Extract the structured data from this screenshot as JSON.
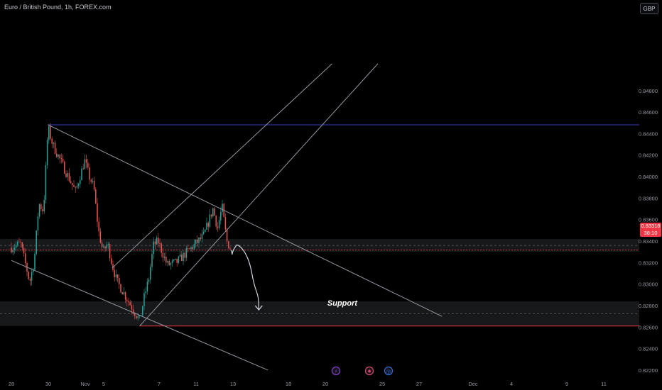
{
  "symbol_title": "Euro / British Pound, 1h, FOREX.com",
  "currency": "GBP",
  "price_tag": {
    "price": "0.83318",
    "countdown": "38:10"
  },
  "annotation": "Support",
  "colors": {
    "background": "#000000",
    "up": "#26a69a",
    "down": "#ef5350",
    "resistance_line": "#2f3fbf",
    "support_line": "#f23645",
    "trendline": "#9598a1",
    "zone": "#2a2b30",
    "price_tag": "#f23645"
  },
  "icons": [
    "lightning-icon",
    "dividend-icon",
    "earnings-icon"
  ],
  "chart_data": {
    "type": "candlestick",
    "title": "Euro / British Pound, 1h, FOREX.com",
    "interval": "1h",
    "x_ticks": [
      "28",
      "30",
      "Nov",
      "5",
      "7",
      "11",
      "13",
      "18",
      "20",
      "25",
      "27",
      "Dec",
      "4",
      "9",
      "11"
    ],
    "y_ticks": [
      "0.84800",
      "0.84600",
      "0.84400",
      "0.84200",
      "0.84000",
      "0.83800",
      "0.83600",
      "0.83400",
      "0.83200",
      "0.83000",
      "0.82800",
      "0.82600",
      "0.82400",
      "0.82200"
    ],
    "ylim": [
      0.8218,
      0.8497
    ],
    "last_price": 0.83318,
    "price_path": [
      {
        "date": "2024-10-28",
        "price": 0.8334
      },
      {
        "date": "2024-10-29",
        "price": 0.8338
      },
      {
        "date": "2024-10-30",
        "price": 0.8302
      },
      {
        "date": "2024-10-30 12:00",
        "price": 0.8322
      },
      {
        "date": "2024-10-31",
        "price": 0.8375
      },
      {
        "date": "2024-10-31 12:00",
        "price": 0.8368
      },
      {
        "date": "2024-11-01",
        "price": 0.8446
      },
      {
        "date": "2024-11-01 12:00",
        "price": 0.843
      },
      {
        "date": "2024-11-04",
        "price": 0.8386
      },
      {
        "date": "2024-11-05",
        "price": 0.8415
      },
      {
        "date": "2024-11-05 12:00",
        "price": 0.84
      },
      {
        "date": "2024-11-06",
        "price": 0.839
      },
      {
        "date": "2024-11-06 12:00",
        "price": 0.835
      },
      {
        "date": "2024-11-07",
        "price": 0.833
      },
      {
        "date": "2024-11-07 12:00",
        "price": 0.8338
      },
      {
        "date": "2024-11-08",
        "price": 0.8318
      },
      {
        "date": "2024-11-08 12:00",
        "price": 0.8303
      },
      {
        "date": "2024-11-11",
        "price": 0.8266
      },
      {
        "date": "2024-11-11 12:00",
        "price": 0.8288
      },
      {
        "date": "2024-11-12",
        "price": 0.8305
      },
      {
        "date": "2024-11-12 12:00",
        "price": 0.8336
      },
      {
        "date": "2024-11-13",
        "price": 0.834
      },
      {
        "date": "2024-11-14",
        "price": 0.8318
      },
      {
        "date": "2024-11-15",
        "price": 0.832
      },
      {
        "date": "2024-11-18",
        "price": 0.8345
      },
      {
        "date": "2024-11-19",
        "price": 0.837
      },
      {
        "date": "2024-11-19 12:00",
        "price": 0.8352
      },
      {
        "date": "2024-11-20",
        "price": 0.8372
      },
      {
        "date": "2024-11-20 12:00",
        "price": 0.834
      },
      {
        "date": "2024-11-21",
        "price": 0.83318
      }
    ],
    "horizontal_levels": [
      {
        "price": 0.84482,
        "style": "resistance"
      },
      {
        "price": 0.8261,
        "style": "support"
      }
    ],
    "zones": [
      {
        "from": 0.833,
        "to": 0.8342
      },
      {
        "from": 0.8261,
        "to": 0.8284
      }
    ],
    "trendlines": [
      {
        "from": {
          "date": "2024-11-01",
          "price": 0.84482
        },
        "to": {
          "date": "2024-12-14",
          "price": 0.827
        }
      },
      {
        "from": {
          "date": "2024-10-28",
          "price": 0.8322
        },
        "to": {
          "date": "2024-11-25",
          "price": 0.822
        }
      },
      {
        "from": {
          "date": "2024-11-11",
          "price": 0.8261
        },
        "to": {
          "date": "2024-12-07",
          "price": 0.8505
        }
      },
      {
        "from": {
          "date": "2024-11-08",
          "price": 0.8315
        },
        "to": {
          "date": "2024-12-02",
          "price": 0.8505
        }
      }
    ],
    "projection": [
      {
        "date": "2024-11-21",
        "price": 0.83318
      },
      {
        "date": "2024-11-21 12:00",
        "price": 0.8334
      },
      {
        "date": "2024-11-22",
        "price": 0.833
      },
      {
        "date": "2024-11-24",
        "price": 0.8276
      }
    ]
  }
}
